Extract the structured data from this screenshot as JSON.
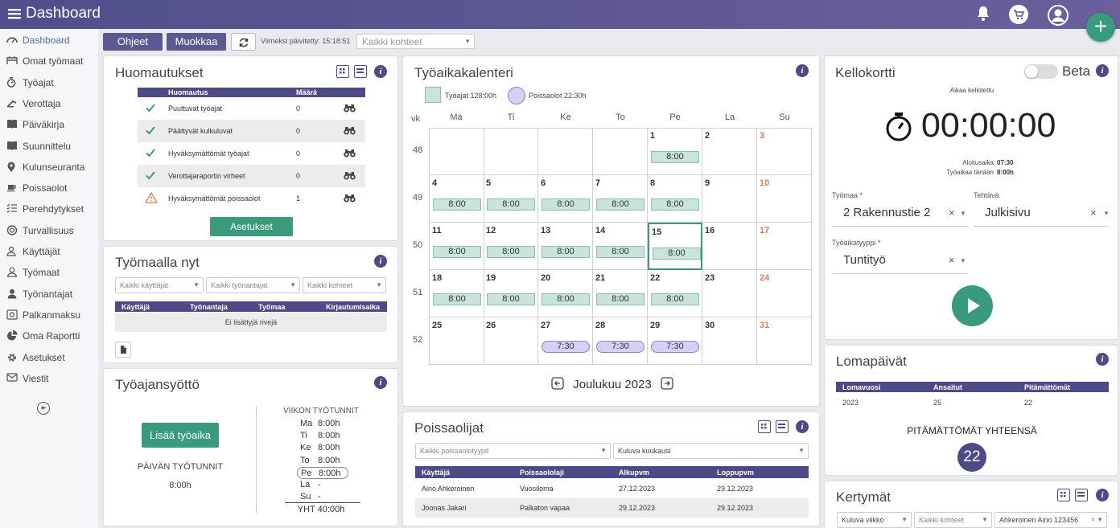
{
  "app": {
    "title": "Dashboard"
  },
  "colors": {
    "brand": "#5d5794",
    "header": "#4d4a86",
    "accent_green": "#3a9a7e",
    "work_event": "#c8e4dc",
    "absence_event": "#d7cff4",
    "weekend_red": "#e07a5f"
  },
  "topbar_icons": [
    "menu-icon",
    "bell-icon",
    "cart-icon",
    "user-icon"
  ],
  "sidebar": {
    "items": [
      {
        "label": "Dashboard",
        "icon": "dashboard-icon"
      },
      {
        "label": "Omat työmaat",
        "icon": "worksite-icon"
      },
      {
        "label": "Työajat",
        "icon": "stopwatch-icon"
      },
      {
        "label": "Verottaja",
        "icon": "tax-icon"
      },
      {
        "label": "Päiväkirja",
        "icon": "book-icon"
      },
      {
        "label": "Suunnittelu",
        "icon": "plan-icon"
      },
      {
        "label": "Kulunseuranta",
        "icon": "pin-icon"
      },
      {
        "label": "Poissaolot",
        "icon": "coffee-icon"
      },
      {
        "label": "Perehdytykset",
        "icon": "list-icon"
      },
      {
        "label": "Turvallisuus",
        "icon": "safety-icon"
      },
      {
        "label": "Käyttäjät",
        "icon": "users-icon"
      },
      {
        "label": "Työmaat",
        "icon": "user-outline-icon"
      },
      {
        "label": "Työnantajat",
        "icon": "employer-icon"
      },
      {
        "label": "Palkanmaksu",
        "icon": "payroll-icon"
      },
      {
        "label": "Oma Raportti",
        "icon": "pie-icon"
      },
      {
        "label": "Asetukset",
        "icon": "gear-icon"
      },
      {
        "label": "Viestit",
        "icon": "mail-icon"
      }
    ]
  },
  "toolbar": {
    "help_label": "Ohjeet",
    "edit_label": "Muokkaa",
    "updated_text": "Viimeksi päivitetty: 15:18:51",
    "site_select": "Kaikki kohteet"
  },
  "huomautukset": {
    "title": "Huomautukset",
    "col_note": "Huomautus",
    "col_count": "Määrä",
    "rows": [
      {
        "status": "check",
        "label": "Puuttuvat työajat",
        "count": "0"
      },
      {
        "status": "check",
        "label": "Päättyvät kulkuluvat",
        "count": "0"
      },
      {
        "status": "check",
        "label": "Hyväksymättömät työajat",
        "count": "0"
      },
      {
        "status": "check",
        "label": "Verottajaraportin virheet",
        "count": "0"
      },
      {
        "status": "warning",
        "label": "Hyväksymättömät poissaolot",
        "count": "1"
      }
    ],
    "settings_label": "Asetukset"
  },
  "tyomaalla": {
    "title": "Työmaalla nyt",
    "filters": [
      "Kaikki käyttäjät",
      "Kaikki työnantajat",
      "Kaikki kohteet"
    ],
    "cols": [
      "Käyttäjä",
      "Työnantaja",
      "Työmaa",
      "Kirjautumisaika"
    ],
    "empty": "Ei lisättyjä rivejä"
  },
  "syotto": {
    "title": "Työajansyöttö",
    "add_label": "Lisää työaika",
    "day_hours_label": "PÄIVÄN TYÖTUNNIT",
    "day_hours": "8:00h",
    "week_title": "VIIKON TYÖTUNNIT",
    "week": [
      {
        "day": "Ma",
        "hours": "8:00h"
      },
      {
        "day": "Ti",
        "hours": "8:00h"
      },
      {
        "day": "Ke",
        "hours": "8:00h"
      },
      {
        "day": "To",
        "hours": "8:00h"
      },
      {
        "day": "Pe",
        "hours": "8:00h"
      },
      {
        "day": "La",
        "hours": "-"
      },
      {
        "day": "Su",
        "hours": "-"
      }
    ],
    "total": "YHT 40:00h"
  },
  "calendar": {
    "title": "Työaikakalenteri",
    "legend_work": "Työajat 128:00h",
    "legend_absence": "Poissaolot 22:30h",
    "week_label": "vk",
    "days": [
      "Ma",
      "Ti",
      "Ke",
      "To",
      "Pe",
      "La",
      "Su"
    ],
    "weeks": [
      {
        "no": "48",
        "cells": [
          {
            "d": ""
          },
          {
            "d": ""
          },
          {
            "d": ""
          },
          {
            "d": ""
          },
          {
            "d": "1",
            "ev": "8:00"
          },
          {
            "d": "2"
          },
          {
            "d": "3",
            "red": true
          }
        ]
      },
      {
        "no": "49",
        "cells": [
          {
            "d": "4",
            "ev": "8:00"
          },
          {
            "d": "5",
            "ev": "8:00"
          },
          {
            "d": "6",
            "ev": "8:00"
          },
          {
            "d": "7",
            "ev": "8:00"
          },
          {
            "d": "8",
            "ev": "8:00"
          },
          {
            "d": "9"
          },
          {
            "d": "10",
            "red": true
          }
        ]
      },
      {
        "no": "50",
        "cells": [
          {
            "d": "11",
            "ev": "8:00"
          },
          {
            "d": "12",
            "ev": "8:00"
          },
          {
            "d": "13",
            "ev": "8:00"
          },
          {
            "d": "14",
            "ev": "8:00"
          },
          {
            "d": "15",
            "ev": "8:00",
            "today": true
          },
          {
            "d": "16"
          },
          {
            "d": "17",
            "red": true
          }
        ]
      },
      {
        "no": "51",
        "cells": [
          {
            "d": "18",
            "ev": "8:00"
          },
          {
            "d": "19",
            "ev": "8:00"
          },
          {
            "d": "20",
            "ev": "8:00"
          },
          {
            "d": "21",
            "ev": "8:00"
          },
          {
            "d": "22",
            "ev": "8:00"
          },
          {
            "d": "23"
          },
          {
            "d": "24",
            "red": true
          }
        ]
      },
      {
        "no": "52",
        "cells": [
          {
            "d": "25"
          },
          {
            "d": "26"
          },
          {
            "d": "27",
            "ab": "7:30"
          },
          {
            "d": "28",
            "ab": "7:30"
          },
          {
            "d": "29",
            "ab": "7:30"
          },
          {
            "d": "30"
          },
          {
            "d": "31",
            "red": true
          }
        ]
      }
    ],
    "month": "Joulukuu 2023"
  },
  "poissaolijat": {
    "title": "Poissaolijat",
    "filters": [
      "Kaikki poissaolotyypit",
      "Kuluva kuukausi"
    ],
    "cols": [
      "Käyttäjä",
      "Poissaololaji",
      "Alkupvm",
      "Loppupvm"
    ],
    "rows": [
      [
        "Aino Ahkeroinen",
        "Vuosiloma",
        "27.12.2023",
        "29.12.2023"
      ],
      [
        "Joonas Jakari",
        "Palkaton vapaa",
        "29.12.2023",
        "29.12.2023"
      ]
    ]
  },
  "kellokortti": {
    "title": "Kellokortti",
    "beta_label": "Beta",
    "clocked_label": "Aikaa kellotettu",
    "timer": "00:00:00",
    "start_label": "Aloitusaika",
    "start_value": "07:30",
    "today_label": "Työaikaa tänään",
    "today_value": "8:00h",
    "site_label": "Työmaa *",
    "site_value": "2 Rakennustie 2",
    "task_label": "Tehtävä",
    "task_value": "Julkisivu",
    "type_label": "Työaikatyyppi *",
    "type_value": "Tuntityö"
  },
  "loma": {
    "title": "Lomapäivät",
    "cols": [
      "Lomavuosi",
      "Ansaitut",
      "Pitämättömät"
    ],
    "row": [
      "2023",
      "25",
      "22"
    ],
    "total_label": "PITÄMÄTTÖMÄT YHTEENSÄ",
    "total": "22"
  },
  "kertymat": {
    "title": "Kertymät",
    "filters": [
      "Kuluva viikko",
      "Kaikki kohteet",
      "Ahkeroinen Aino 123456"
    ]
  }
}
